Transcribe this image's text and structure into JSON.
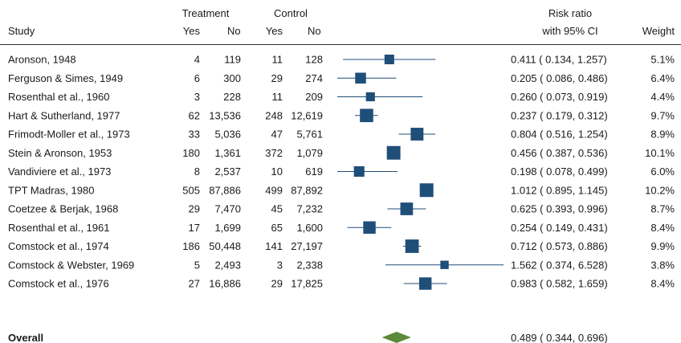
{
  "chart_data": {
    "type": "forest",
    "headers": {
      "study": "Study",
      "treatment": "Treatment",
      "control": "Control",
      "yes": "Yes",
      "no": "No",
      "ratio_line1": "Risk ratio",
      "ratio_line2": "with 95% CI",
      "weight": "Weight"
    },
    "x_scale": "log",
    "xlim": [
      0.1167,
      6.9
    ],
    "studies": [
      {
        "name": "Aronson, 1948",
        "t_yes": "4",
        "t_no": "119",
        "c_yes": "11",
        "c_no": "128",
        "rr": 0.411,
        "lo": 0.134,
        "hi": 1.257,
        "rr_text": "0.411 ( 0.134,  1.257)",
        "weight": 5.1,
        "weight_text": "5.1%"
      },
      {
        "name": "Ferguson & Simes, 1949",
        "t_yes": "6",
        "t_no": "300",
        "c_yes": "29",
        "c_no": "274",
        "rr": 0.205,
        "lo": 0.086,
        "hi": 0.486,
        "rr_text": "0.205 ( 0.086,  0.486)",
        "weight": 6.4,
        "weight_text": "6.4%"
      },
      {
        "name": "Rosenthal et al., 1960",
        "t_yes": "3",
        "t_no": "228",
        "c_yes": "11",
        "c_no": "209",
        "rr": 0.26,
        "lo": 0.073,
        "hi": 0.919,
        "rr_text": "0.260 ( 0.073,  0.919)",
        "weight": 4.4,
        "weight_text": "4.4%"
      },
      {
        "name": "Hart & Sutherland, 1977",
        "t_yes": "62",
        "t_no": "13,536",
        "c_yes": "248",
        "c_no": "12,619",
        "rr": 0.237,
        "lo": 0.179,
        "hi": 0.312,
        "rr_text": "0.237 ( 0.179,  0.312)",
        "weight": 9.7,
        "weight_text": "9.7%"
      },
      {
        "name": "Frimodt-Moller et al., 1973",
        "t_yes": "33",
        "t_no": "5,036",
        "c_yes": "47",
        "c_no": "5,761",
        "rr": 0.804,
        "lo": 0.516,
        "hi": 1.254,
        "rr_text": "0.804 ( 0.516,  1.254)",
        "weight": 8.9,
        "weight_text": "8.9%"
      },
      {
        "name": "Stein & Aronson, 1953",
        "t_yes": "180",
        "t_no": "1,361",
        "c_yes": "372",
        "c_no": "1,079",
        "rr": 0.456,
        "lo": 0.387,
        "hi": 0.536,
        "rr_text": "0.456 ( 0.387,  0.536)",
        "weight": 10.1,
        "weight_text": "10.1%"
      },
      {
        "name": "Vandiviere et al., 1973",
        "t_yes": "8",
        "t_no": "2,537",
        "c_yes": "10",
        "c_no": "619",
        "rr": 0.198,
        "lo": 0.078,
        "hi": 0.499,
        "rr_text": "0.198 ( 0.078,  0.499)",
        "weight": 6.0,
        "weight_text": "6.0%"
      },
      {
        "name": "TPT Madras, 1980",
        "t_yes": "505",
        "t_no": "87,886",
        "c_yes": "499",
        "c_no": "87,892",
        "rr": 1.012,
        "lo": 0.895,
        "hi": 1.145,
        "rr_text": "1.012 ( 0.895,  1.145)",
        "weight": 10.2,
        "weight_text": "10.2%"
      },
      {
        "name": "Coetzee & Berjak, 1968",
        "t_yes": "29",
        "t_no": "7,470",
        "c_yes": "45",
        "c_no": "7,232",
        "rr": 0.625,
        "lo": 0.393,
        "hi": 0.996,
        "rr_text": "0.625 ( 0.393,  0.996)",
        "weight": 8.7,
        "weight_text": "8.7%"
      },
      {
        "name": "Rosenthal et al., 1961",
        "t_yes": "17",
        "t_no": "1,699",
        "c_yes": "65",
        "c_no": "1,600",
        "rr": 0.254,
        "lo": 0.149,
        "hi": 0.431,
        "rr_text": "0.254 ( 0.149,  0.431)",
        "weight": 8.4,
        "weight_text": "8.4%"
      },
      {
        "name": "Comstock et al., 1974",
        "t_yes": "186",
        "t_no": "50,448",
        "c_yes": "141",
        "c_no": "27,197",
        "rr": 0.712,
        "lo": 0.573,
        "hi": 0.886,
        "rr_text": "0.712 ( 0.573,  0.886)",
        "weight": 9.9,
        "weight_text": "9.9%"
      },
      {
        "name": "Comstock & Webster, 1969",
        "t_yes": "5",
        "t_no": "2,493",
        "c_yes": "3",
        "c_no": "2,338",
        "rr": 1.562,
        "lo": 0.374,
        "hi": 6.528,
        "rr_text": "1.562 ( 0.374,  6.528)",
        "weight": 3.8,
        "weight_text": "3.8%"
      },
      {
        "name": "Comstock et al., 1976",
        "t_yes": "27",
        "t_no": "16,886",
        "c_yes": "29",
        "c_no": "17,825",
        "rr": 0.983,
        "lo": 0.582,
        "hi": 1.659,
        "rr_text": "0.983 ( 0.582,  1.659)",
        "weight": 8.4,
        "weight_text": "8.4%"
      }
    ],
    "overall": {
      "name": "Overall",
      "rr": 0.489,
      "lo": 0.344,
      "hi": 0.696,
      "rr_text": "0.489 ( 0.344,  0.696)"
    },
    "colors": {
      "marker": "#1f4e79",
      "ci_line": "#1f4e79",
      "diamond": "#5b8a3a",
      "text": "#1a1a1a",
      "rule": "#333333"
    }
  }
}
